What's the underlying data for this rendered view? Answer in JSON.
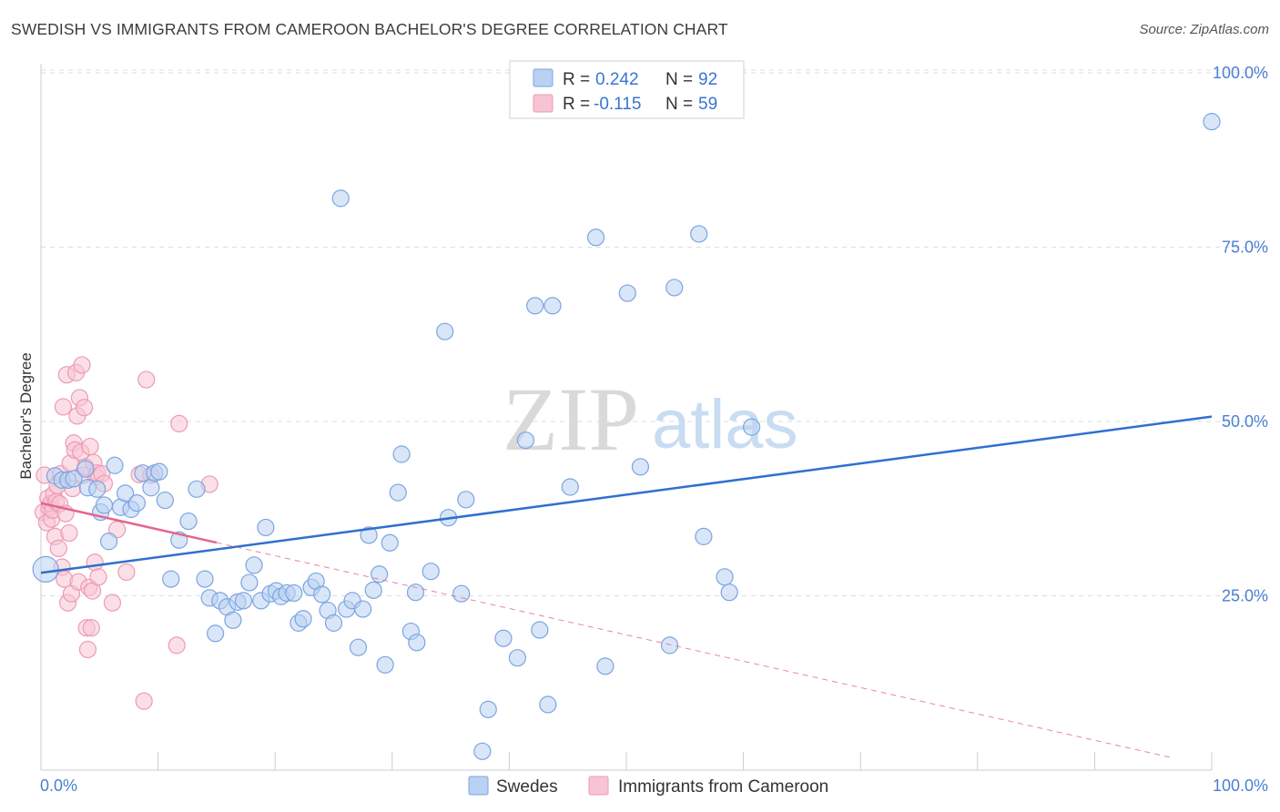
{
  "header": {
    "title": "SWEDISH VS IMMIGRANTS FROM CAMEROON BACHELOR'S DEGREE CORRELATION CHART",
    "source": "Source: ZipAtlas.com"
  },
  "watermark": {
    "zip": "ZIP",
    "atlas": "atlas"
  },
  "legend": {
    "rows": [
      {
        "r_label": "R =",
        "r_value": "0.242",
        "n_label": "N =",
        "n_value": "92"
      },
      {
        "r_label": "R =",
        "r_value": "-0.115",
        "n_label": "N =",
        "n_value": "59"
      }
    ]
  },
  "bottom_legend": {
    "items": [
      "Swedes",
      "Immigrants from Cameroon"
    ]
  },
  "colors": {
    "blue_fill": "#b9d1f2",
    "blue_stroke": "#7ba5e0",
    "blue_line": "#2f6fd0",
    "pink_fill": "#f8c4d3",
    "pink_stroke": "#ee9ab4",
    "pink_line": "#e3668f",
    "tick_text": "#4a7fd4",
    "grid": "#dddddd"
  },
  "chart_data": {
    "type": "scatter",
    "title": "SWEDISH VS IMMIGRANTS FROM CAMEROON BACHELOR'S DEGREE CORRELATION CHART",
    "xlabel": "",
    "ylabel": "Bachelor's Degree",
    "xlim": [
      0,
      100
    ],
    "ylim": [
      0,
      105
    ],
    "x_tick_labels": [
      "0.0%",
      "100.0%"
    ],
    "y_tick_values": [
      25,
      50,
      75,
      100
    ],
    "y_tick_labels": [
      "25.0%",
      "50.0%",
      "75.0%",
      "100.0%"
    ],
    "grid": true,
    "legend_position": "top-center",
    "series": [
      {
        "name": "Swedes",
        "r": 0.242,
        "n": 92,
        "trend": {
          "x0": 0,
          "y0": 28.3,
          "x1": 100,
          "y1": 50.7
        },
        "points": [
          [
            0.4,
            28.8
          ],
          [
            1.2,
            42.2
          ],
          [
            1.8,
            41.6
          ],
          [
            2.3,
            41.6
          ],
          [
            2.8,
            41.8
          ],
          [
            3.8,
            43.2
          ],
          [
            4.0,
            40.5
          ],
          [
            4.8,
            40.3
          ],
          [
            5.1,
            37.0
          ],
          [
            5.4,
            38.0
          ],
          [
            5.8,
            32.8
          ],
          [
            6.3,
            43.7
          ],
          [
            6.8,
            37.7
          ],
          [
            7.2,
            39.7
          ],
          [
            7.7,
            37.4
          ],
          [
            8.2,
            38.3
          ],
          [
            8.7,
            42.6
          ],
          [
            9.4,
            40.5
          ],
          [
            9.7,
            42.6
          ],
          [
            10.1,
            42.8
          ],
          [
            10.6,
            38.7
          ],
          [
            11.1,
            27.4
          ],
          [
            11.8,
            33.0
          ],
          [
            12.6,
            35.7
          ],
          [
            13.3,
            40.3
          ],
          [
            14.0,
            27.4
          ],
          [
            14.4,
            24.7
          ],
          [
            14.9,
            19.6
          ],
          [
            15.3,
            24.3
          ],
          [
            15.9,
            23.4
          ],
          [
            16.4,
            21.5
          ],
          [
            16.8,
            24.1
          ],
          [
            17.3,
            24.3
          ],
          [
            17.8,
            26.9
          ],
          [
            18.2,
            29.4
          ],
          [
            18.8,
            24.3
          ],
          [
            19.2,
            34.8
          ],
          [
            19.6,
            25.3
          ],
          [
            20.1,
            25.7
          ],
          [
            20.5,
            24.9
          ],
          [
            21.0,
            25.4
          ],
          [
            21.6,
            25.4
          ],
          [
            22.0,
            21.1
          ],
          [
            22.4,
            21.7
          ],
          [
            23.1,
            26.2
          ],
          [
            23.5,
            27.1
          ],
          [
            24.0,
            25.2
          ],
          [
            24.5,
            22.9
          ],
          [
            25.0,
            21.1
          ],
          [
            25.6,
            82.0
          ],
          [
            26.1,
            23.1
          ],
          [
            26.6,
            24.3
          ],
          [
            27.1,
            17.6
          ],
          [
            27.5,
            23.1
          ],
          [
            28.0,
            33.7
          ],
          [
            28.4,
            25.8
          ],
          [
            28.9,
            28.1
          ],
          [
            29.4,
            15.1
          ],
          [
            29.8,
            32.6
          ],
          [
            30.5,
            39.8
          ],
          [
            30.8,
            45.3
          ],
          [
            31.6,
            19.9
          ],
          [
            32.0,
            25.5
          ],
          [
            32.1,
            18.3
          ],
          [
            33.3,
            28.5
          ],
          [
            34.5,
            62.9
          ],
          [
            34.8,
            36.2
          ],
          [
            35.9,
            25.3
          ],
          [
            36.3,
            38.8
          ],
          [
            37.7,
            2.7
          ],
          [
            38.2,
            8.7
          ],
          [
            39.5,
            18.9
          ],
          [
            40.7,
            16.1
          ],
          [
            41.4,
            47.3
          ],
          [
            42.2,
            66.6
          ],
          [
            42.6,
            20.1
          ],
          [
            43.3,
            9.4
          ],
          [
            43.7,
            66.6
          ],
          [
            45.2,
            40.6
          ],
          [
            47.4,
            76.4
          ],
          [
            48.2,
            14.9
          ],
          [
            50.1,
            68.4
          ],
          [
            51.2,
            43.5
          ],
          [
            53.7,
            17.9
          ],
          [
            54.1,
            69.2
          ],
          [
            56.2,
            76.9
          ],
          [
            56.6,
            33.5
          ],
          [
            58.4,
            27.7
          ],
          [
            58.8,
            25.5
          ],
          [
            60.7,
            49.2
          ],
          [
            100,
            93.0
          ]
        ]
      },
      {
        "name": "Immigrants from Cameroon",
        "r": -0.115,
        "n": 59,
        "trend": {
          "x0": 0,
          "y0": 38.3,
          "x1": 100,
          "y1": 0.5,
          "solid_to": 15.0
        },
        "points": [
          [
            0.2,
            37.0
          ],
          [
            0.3,
            42.3
          ],
          [
            0.5,
            35.5
          ],
          [
            0.6,
            39.0
          ],
          [
            0.7,
            37.6
          ],
          [
            0.8,
            38.2
          ],
          [
            0.9,
            36.0
          ],
          [
            1.0,
            37.3
          ],
          [
            1.1,
            39.6
          ],
          [
            1.2,
            33.5
          ],
          [
            1.3,
            38.5
          ],
          [
            1.4,
            40.8
          ],
          [
            1.5,
            31.8
          ],
          [
            1.6,
            38.2
          ],
          [
            1.7,
            42.5
          ],
          [
            1.8,
            29.1
          ],
          [
            1.9,
            52.1
          ],
          [
            2.0,
            27.4
          ],
          [
            2.1,
            36.8
          ],
          [
            2.2,
            56.7
          ],
          [
            2.3,
            24.0
          ],
          [
            2.4,
            34.0
          ],
          [
            2.5,
            44.0
          ],
          [
            2.6,
            25.3
          ],
          [
            2.7,
            40.4
          ],
          [
            2.8,
            46.9
          ],
          [
            2.9,
            45.9
          ],
          [
            3.0,
            57.0
          ],
          [
            3.1,
            50.8
          ],
          [
            3.2,
            27.0
          ],
          [
            3.3,
            53.4
          ],
          [
            3.4,
            45.6
          ],
          [
            3.5,
            58.1
          ],
          [
            3.6,
            42.3
          ],
          [
            3.7,
            52.0
          ],
          [
            3.8,
            43.5
          ],
          [
            3.9,
            20.4
          ],
          [
            4.0,
            17.3
          ],
          [
            4.1,
            26.2
          ],
          [
            4.2,
            46.4
          ],
          [
            4.3,
            20.4
          ],
          [
            4.4,
            25.7
          ],
          [
            4.5,
            44.1
          ],
          [
            4.6,
            29.8
          ],
          [
            4.7,
            42.1
          ],
          [
            4.8,
            42.6
          ],
          [
            4.9,
            27.7
          ],
          [
            5.2,
            42.5
          ],
          [
            5.4,
            41.1
          ],
          [
            6.1,
            24.0
          ],
          [
            6.5,
            34.5
          ],
          [
            7.3,
            28.4
          ],
          [
            8.4,
            42.4
          ],
          [
            8.8,
            9.9
          ],
          [
            9.0,
            56.0
          ],
          [
            9.4,
            42.3
          ],
          [
            11.6,
            17.9
          ],
          [
            11.8,
            49.7
          ],
          [
            14.4,
            41.0
          ]
        ]
      }
    ]
  }
}
